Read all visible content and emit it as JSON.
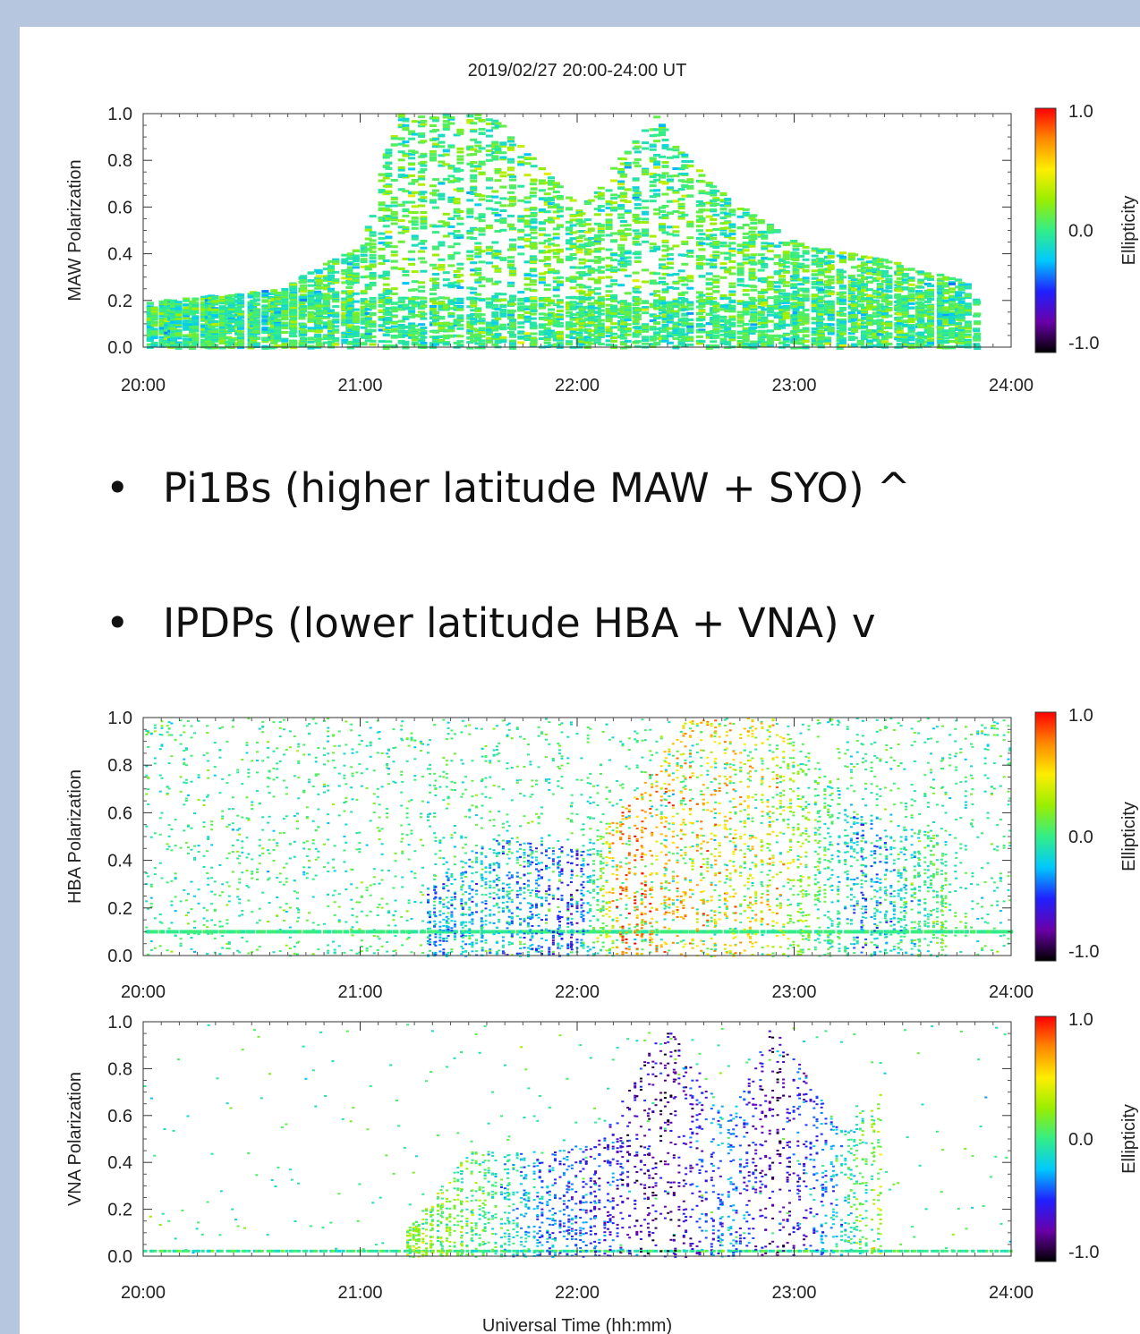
{
  "title": "2019/02/27  20:00-24:00 UT",
  "bullets": [
    {
      "text": "Pi1Bs (higher latitude MAW + SYO) ^"
    },
    {
      "text": "IPDPs (lower latitude HBA + VNA)   v"
    }
  ],
  "colors": {
    "background": "#b7c6df",
    "panel": "#ffffff",
    "colorbar_stops": [
      "#000000",
      "#6a00a8",
      "#2020ff",
      "#00c8ff",
      "#33ee88",
      "#99ee00",
      "#ffee00",
      "#ff8800",
      "#ff0000"
    ]
  },
  "chart_data": [
    {
      "type": "heatmap",
      "title": "2019/02/27  20:00-24:00 UT",
      "ylabel": "MAW Polarization",
      "xlabel": "",
      "x_ticks": [
        "20:00",
        "21:00",
        "22:00",
        "23:00",
        "24:00"
      ],
      "y_ticks": [
        "0.0",
        "0.2",
        "0.4",
        "0.6",
        "0.8",
        "1.0"
      ],
      "xlim": [
        20,
        24
      ],
      "ylim": [
        0,
        1
      ],
      "colorbar": {
        "label": "Ellipticity",
        "ticks": [
          "-1.0",
          "0.0",
          "1.0"
        ],
        "range": [
          -1,
          1
        ]
      },
      "data_end_hour": 23.85,
      "activity_profile": [
        {
          "x": 20.0,
          "ymax": 0.2,
          "ell": 0.0
        },
        {
          "x": 20.6,
          "ymax": 0.25,
          "ell": 0.0
        },
        {
          "x": 21.0,
          "ymax": 0.45,
          "ell": 0.05
        },
        {
          "x": 21.15,
          "ymax": 1.0,
          "ell": 0.05
        },
        {
          "x": 21.35,
          "ymax": 1.0,
          "ell": 0.05
        },
        {
          "x": 21.6,
          "ymax": 1.0,
          "ell": 0.05
        },
        {
          "x": 22.0,
          "ymax": 0.6,
          "ell": 0.1
        },
        {
          "x": 22.35,
          "ymax": 1.0,
          "ell": 0.05
        },
        {
          "x": 22.6,
          "ymax": 0.7,
          "ell": 0.05
        },
        {
          "x": 23.0,
          "ymax": 0.45,
          "ell": 0.05
        },
        {
          "x": 23.4,
          "ymax": 0.38,
          "ell": 0.05
        },
        {
          "x": 23.8,
          "ymax": 0.28,
          "ell": 0.0
        }
      ]
    },
    {
      "type": "heatmap",
      "title": "",
      "ylabel": "HBA Polarization",
      "xlabel": "",
      "x_ticks": [
        "20:00",
        "21:00",
        "22:00",
        "23:00",
        "24:00"
      ],
      "y_ticks": [
        "0.0",
        "0.2",
        "0.4",
        "0.6",
        "0.8",
        "1.0"
      ],
      "xlim": [
        20,
        24
      ],
      "ylim": [
        0,
        1
      ],
      "colorbar": {
        "label": "Ellipticity",
        "ticks": [
          "-1.0",
          "0.0",
          "1.0"
        ],
        "range": [
          -1,
          1
        ]
      },
      "baseline_band": {
        "y": 0.1,
        "ell": 0.0
      },
      "activity_profile": [
        {
          "x": 21.3,
          "ymax": 0.3,
          "ell": -0.3
        },
        {
          "x": 21.6,
          "ymax": 0.5,
          "ell": -0.2
        },
        {
          "x": 22.0,
          "ymax": 0.45,
          "ell": -0.5
        },
        {
          "x": 22.2,
          "ymax": 0.6,
          "ell": 0.8
        },
        {
          "x": 22.5,
          "ymax": 1.0,
          "ell": 0.6
        },
        {
          "x": 22.9,
          "ymax": 1.0,
          "ell": 0.5
        },
        {
          "x": 23.3,
          "ymax": 0.6,
          "ell": -0.3
        },
        {
          "x": 23.7,
          "ymax": 0.5,
          "ell": 0.1
        }
      ]
    },
    {
      "type": "heatmap",
      "title": "",
      "ylabel": "VNA Polarization",
      "xlabel": "Universal Time (hh:mm)",
      "x_ticks": [
        "20:00",
        "21:00",
        "22:00",
        "23:00",
        "24:00"
      ],
      "y_ticks": [
        "0.0",
        "0.2",
        "0.4",
        "0.6",
        "0.8",
        "1.0"
      ],
      "xlim": [
        20,
        24
      ],
      "ylim": [
        0,
        1
      ],
      "colorbar": {
        "label": "Ellipticity",
        "ticks": [
          "-1.0",
          "0.0",
          "1.0"
        ],
        "range": [
          -1,
          1
        ]
      },
      "activity_profile": [
        {
          "x": 21.2,
          "ymax": 0.1,
          "ell": 0.2
        },
        {
          "x": 21.5,
          "ymax": 0.45,
          "ell": 0.1
        },
        {
          "x": 21.9,
          "ymax": 0.45,
          "ell": -0.4
        },
        {
          "x": 22.1,
          "ymax": 0.5,
          "ell": -0.5
        },
        {
          "x": 22.4,
          "ymax": 1.0,
          "ell": -0.8
        },
        {
          "x": 22.7,
          "ymax": 0.6,
          "ell": -0.3
        },
        {
          "x": 22.9,
          "ymax": 1.0,
          "ell": -0.8
        },
        {
          "x": 23.2,
          "ymax": 0.55,
          "ell": -0.2
        },
        {
          "x": 23.4,
          "ymax": 0.7,
          "ell": 0.3
        }
      ]
    }
  ]
}
